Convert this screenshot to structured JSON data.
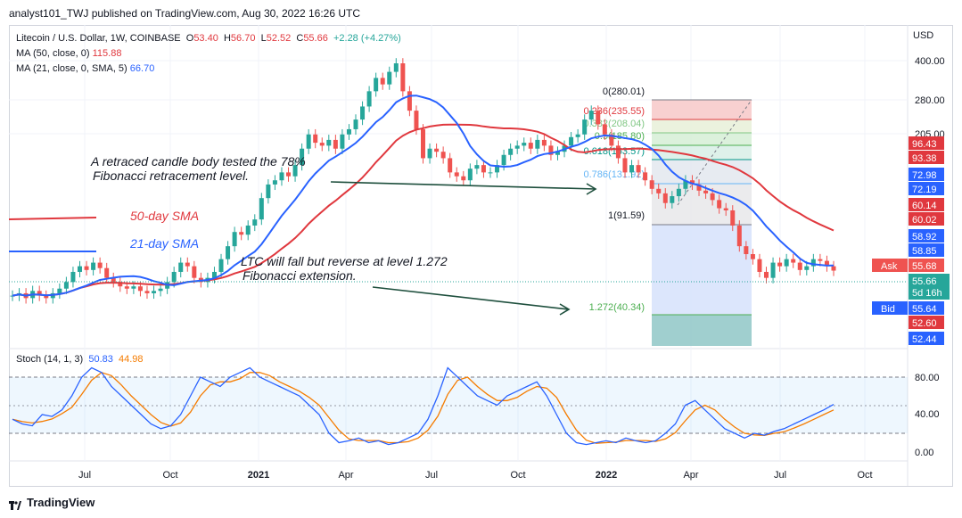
{
  "header": {
    "publisher": "analyst101_TWJ published on TradingView.com, Aug 30, 2022 16:26 UTC"
  },
  "legend": {
    "symbol": "Litecoin / U.S. Dollar, 1W, COINBASE",
    "open_label": "O",
    "open": "53.40",
    "high_label": "H",
    "high": "56.70",
    "low_label": "L",
    "low": "52.52",
    "close_label": "C",
    "close": "55.66",
    "change": "+2.28 (+4.27%)",
    "ma50_label": "MA (50, close, 0)",
    "ma50_value": "115.88",
    "ma21_label": "MA (21, close, 0, SMA, 5)",
    "ma21_value": "66.70"
  },
  "stoch": {
    "label": "Stoch (14, 1, 3)",
    "k": "50.83",
    "d": "44.98"
  },
  "axis": {
    "currency": "USD",
    "price_ticks": [
      "400.00",
      "280.00",
      "205.00"
    ],
    "stoch_ticks": [
      "80.00",
      "40.00",
      "0.00"
    ],
    "time_ticks": [
      "Jul",
      "Oct",
      "2021",
      "Apr",
      "Jul",
      "Oct",
      "2022",
      "Apr",
      "Jul",
      "Oct"
    ]
  },
  "price_badges": [
    {
      "text": "96.43",
      "color": "#e0383e"
    },
    {
      "text": "93.38",
      "color": "#e0383e"
    },
    {
      "text": "72.98",
      "color": "#2962ff"
    },
    {
      "text": "72.19",
      "color": "#2962ff"
    },
    {
      "text": "60.14",
      "color": "#e0383e"
    },
    {
      "text": "60.02",
      "color": "#e0383e"
    },
    {
      "text": "58.92",
      "color": "#2962ff"
    },
    {
      "text": "58.85",
      "color": "#2962ff"
    },
    {
      "text": "52.60",
      "color": "#e0383e"
    },
    {
      "text": "52.44",
      "color": "#2962ff"
    }
  ],
  "ask": {
    "label": "Ask",
    "value": "55.68"
  },
  "bid": {
    "label": "Bid",
    "value": "55.64"
  },
  "last": {
    "value": "55.66",
    "countdown": "5d 16h"
  },
  "annotations": {
    "text1_line1": "A retraced candle body tested the 78%",
    "text1_line2": "Fibonacci retracement level.",
    "sma50": "50-day SMA",
    "sma21": "21-day SMA",
    "text2_line1": "LTC will fall but reverse at level 1.272",
    "text2_line2": "Fibonacci extension."
  },
  "fib_labels": [
    "0(280.01)",
    "0.236(235.55)",
    "0.382(208.04)",
    "0.5(185.80)",
    "0.618(163.57)",
    "0.786(131.92)",
    "1(91.59)",
    "1.272(40.34)"
  ],
  "footer": {
    "brand": "TradingView"
  },
  "colors": {
    "up": "#26a69a",
    "down": "#ef5350",
    "ma50": "#e0383e",
    "ma21": "#2962ff",
    "stoch_k": "#2962ff",
    "stoch_d": "#f57c00"
  },
  "chart_data": {
    "type": "candlestick",
    "timeframe": "1W",
    "x": [
      "Jul 2020",
      "Oct 2020",
      "Jan 2021",
      "Apr 2021",
      "May 2021",
      "Jul 2021",
      "Sep 2021",
      "Nov 2021",
      "Jan 2022",
      "Mar 2022",
      "Apr 2022",
      "May 2022",
      "Jun 2022",
      "Aug 2022"
    ],
    "close_approx": [
      44,
      47,
      130,
      250,
      340,
      130,
      175,
      250,
      130,
      115,
      110,
      70,
      50,
      55.66
    ],
    "series": [
      {
        "name": "MA (50, close, 0)",
        "values": [
          60,
          50,
          55,
          90,
          120,
          145,
          165,
          170,
          160,
          145,
          130,
          118,
          116,
          115.88
        ]
      },
      {
        "name": "MA (21, close, 0, SMA, 5)",
        "values": [
          45,
          45,
          70,
          150,
          200,
          175,
          160,
          170,
          150,
          120,
          100,
          85,
          70,
          66.7
        ]
      }
    ],
    "stochastic": {
      "label": "Stoch (14, 1, 3)",
      "k": [
        35,
        40,
        90,
        80,
        60,
        10,
        90,
        60,
        10,
        15,
        60,
        20,
        25,
        50.83
      ],
      "d": [
        38,
        38,
        80,
        75,
        65,
        15,
        75,
        65,
        15,
        12,
        50,
        25,
        22,
        44.98
      ]
    }
  }
}
